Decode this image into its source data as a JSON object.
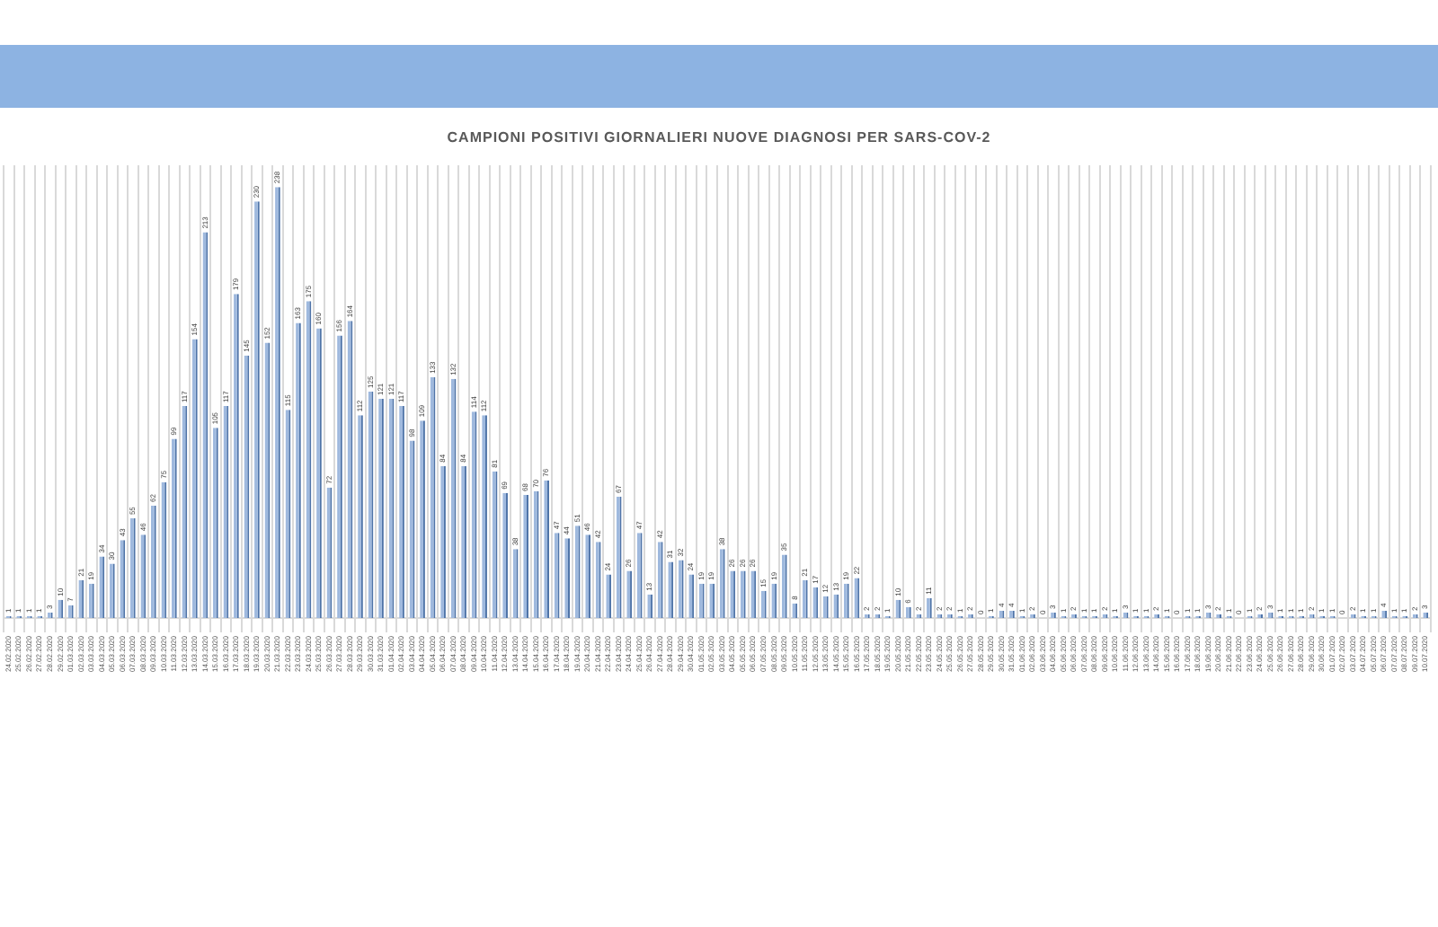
{
  "chart_data": {
    "type": "bar",
    "title": "CAMPIONI POSITIVI GIORNALIERI NUOVE DIAGNOSI PER SARS-COV-2",
    "categories": [
      "24.02.2020",
      "25.02.2020",
      "26.02.2020",
      "27.02.2020",
      "28.02.2020",
      "29.02.2020",
      "01.03.2020",
      "02.03.2020",
      "03.03.2020",
      "04.03.2020",
      "05.03.2020",
      "06.03.2020",
      "07.03.2020",
      "08.03.2020",
      "09.03.2020",
      "10.03.2020",
      "11.03.2020",
      "12.03.2020",
      "13.03.2020",
      "14.03.2020",
      "15.03.2020",
      "16.03.2020",
      "17.03.2020",
      "18.03.2020",
      "19.03.2020",
      "20.03.2020",
      "21.03.2020",
      "22.03.2020",
      "23.03.2020",
      "24.03.2020",
      "25.03.2020",
      "26.03.2020",
      "27.03.2020",
      "28.03.2020",
      "29.03.2020",
      "30.03.2020",
      "31.03.2020",
      "01.04.2020",
      "02.04.2020",
      "03.04.2020",
      "04.04.2020",
      "05.04.2020",
      "06.04.2020",
      "07.04.2020",
      "08.04.2020",
      "09.04.2020",
      "10.04.2020",
      "11.04.2020",
      "12.04.2020",
      "13.04.2020",
      "14.04.2020",
      "15.04.2020",
      "16.04.2020",
      "17.04.2020",
      "18.04.2020",
      "19.04.2020",
      "20.04.2020",
      "21.04.2020",
      "22.04.2020",
      "23.04.2020",
      "24.04.2020",
      "25.04.2020",
      "26.04.2020",
      "27.04.2020",
      "28.04.2020",
      "29.04.2020",
      "30.04.2020",
      "01.05.2020",
      "02.05.2020",
      "03.05.2020",
      "04.05.2020",
      "05.05.2020",
      "06.05.2020",
      "07.05.2020",
      "08.05.2020",
      "09.05.2020",
      "10.05.2020",
      "11.05.2020",
      "12.05.2020",
      "13.05.2020",
      "14.05.2020",
      "15.05.2020",
      "16.05.2020",
      "17.05.2020",
      "18.05.2020",
      "19.05.2020",
      "20.05.2020",
      "21.05.2020",
      "22.05.2020",
      "23.05.2020",
      "24.05.2020",
      "25.05.2020",
      "26.05.2020",
      "27.05.2020",
      "28.05.2020",
      "29.05.2020",
      "30.05.2020",
      "31.05.2020",
      "01.06.2020",
      "02.06.2020",
      "03.06.2020",
      "04.06.2020",
      "05.06.2020",
      "06.06.2020",
      "07.06.2020",
      "08.06.2020",
      "09.06.2020",
      "10.06.2020",
      "11.06.2020",
      "12.06.2020",
      "13.06.2020",
      "14.06.2020",
      "15.06.2020",
      "16.06.2020",
      "17.06.2020",
      "18.06.2020",
      "19.06.2020",
      "20.06.2020",
      "21.06.2020",
      "22.06.2020",
      "23.06.2020",
      "24.06.2020",
      "25.06.2020",
      "26.06.2020",
      "27.06.2020",
      "28.06.2020",
      "29.06.2020",
      "30.06.2020",
      "01.07.2020",
      "02.07.2020",
      "03.07.2020",
      "04.07.2020",
      "05.07.2020",
      "06.07.2020",
      "07.07.2020",
      "08.07.2020",
      "09.07.2020",
      "10.07.2020"
    ],
    "values": [
      1,
      1,
      1,
      1,
      3,
      10,
      7,
      21,
      19,
      34,
      30,
      43,
      55,
      46,
      62,
      75,
      99,
      117,
      154,
      213,
      105,
      117,
      179,
      145,
      230,
      152,
      238,
      115,
      163,
      175,
      160,
      72,
      156,
      164,
      112,
      125,
      121,
      121,
      117,
      98,
      109,
      133,
      84,
      132,
      84,
      114,
      112,
      81,
      69,
      38,
      68,
      70,
      76,
      47,
      44,
      51,
      46,
      42,
      24,
      67,
      26,
      47,
      13,
      42,
      31,
      32,
      24,
      19,
      19,
      38,
      26,
      26,
      26,
      15,
      19,
      35,
      8,
      21,
      17,
      12,
      13,
      19,
      22,
      2,
      2,
      1,
      10,
      6,
      2,
      11,
      2,
      2,
      1,
      2,
      0,
      1,
      4,
      4,
      1,
      2,
      0,
      3,
      1,
      2,
      1,
      1,
      2,
      1,
      3,
      1,
      1,
      2,
      1,
      0,
      1,
      1,
      3,
      2,
      1,
      0,
      1,
      2,
      3,
      1,
      1,
      1,
      2,
      1,
      1,
      0,
      2,
      1,
      1,
      4,
      1,
      1,
      2,
      3
    ],
    "color": "#9fb9de",
    "data_labels": true,
    "grid": "x",
    "legend": false
  }
}
